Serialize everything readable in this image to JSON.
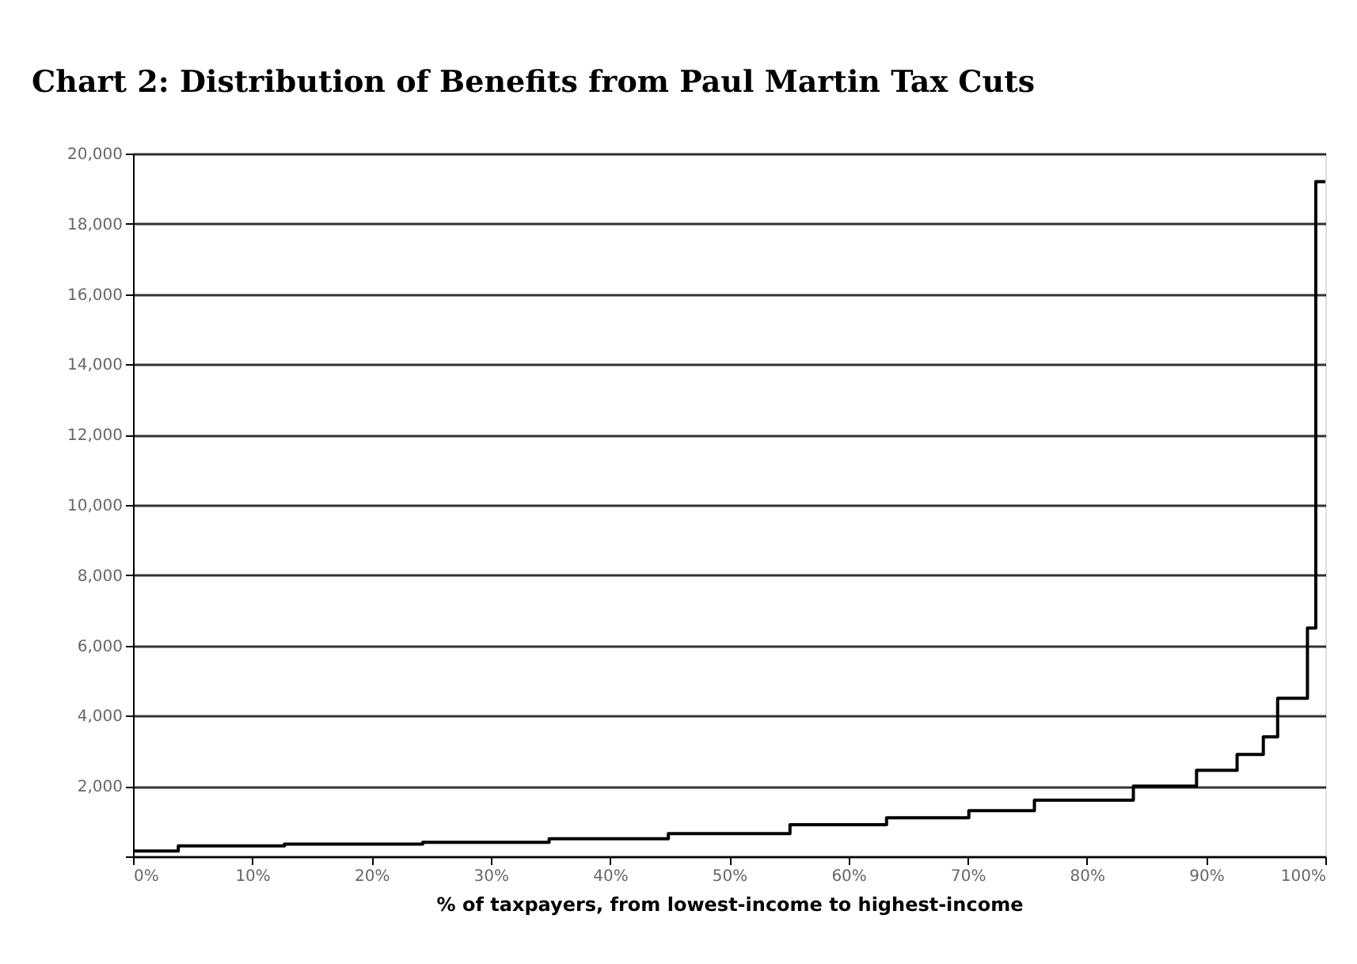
{
  "chart_data": {
    "type": "step",
    "title": "Chart 2: Distribution of Benefits from Paul Martin Tax Cuts",
    "xlabel": "% of taxpayers, from lowest-income to highest-income",
    "x": [
      0,
      3.8,
      12.7,
      24.3,
      34.9,
      44.9,
      55.1,
      63.2,
      70.1,
      75.6,
      83.9,
      89.2,
      92.6,
      94.8,
      96,
      98.5,
      99.2,
      100
    ],
    "series": [
      {
        "color": "#000000",
        "values": [
          150,
          300,
          350,
          400,
          500,
          650,
          900,
          1100,
          1300,
          1600,
          2000,
          2450,
          2900,
          3400,
          4500,
          6500,
          19200,
          19200
        ]
      }
    ],
    "xlim": [
      0,
      100
    ],
    "xticks": [
      {
        "value": 0,
        "label": "0%"
      },
      {
        "value": 10,
        "label": "10%"
      },
      {
        "value": 20,
        "label": "20%"
      },
      {
        "value": 30,
        "label": "30%"
      },
      {
        "value": 40,
        "label": "40%"
      },
      {
        "value": 50,
        "label": "50%"
      },
      {
        "value": 60,
        "label": "60%"
      },
      {
        "value": 70,
        "label": "70%"
      },
      {
        "value": 80,
        "label": "80%"
      },
      {
        "value": 90,
        "label": "90%"
      },
      {
        "value": 100,
        "label": "100%"
      }
    ],
    "ylim": [
      0,
      20000
    ],
    "yticks": [
      {
        "value": 0,
        "label": null
      },
      {
        "value": 2000,
        "label": "2,000"
      },
      {
        "value": 4000,
        "label": "4,000"
      },
      {
        "value": 6000,
        "label": "6,000"
      },
      {
        "value": 8000,
        "label": "8,000"
      },
      {
        "value": 10000,
        "label": "10,000"
      },
      {
        "value": 12000,
        "label": "12,000"
      },
      {
        "value": 14000,
        "label": "14,000"
      },
      {
        "value": 16000,
        "label": "16,000"
      },
      {
        "value": 18000,
        "label": "18,000"
      },
      {
        "value": 20000,
        "label": "20,000"
      }
    ],
    "grid": "y",
    "marker": "none",
    "line_style": "solid"
  }
}
